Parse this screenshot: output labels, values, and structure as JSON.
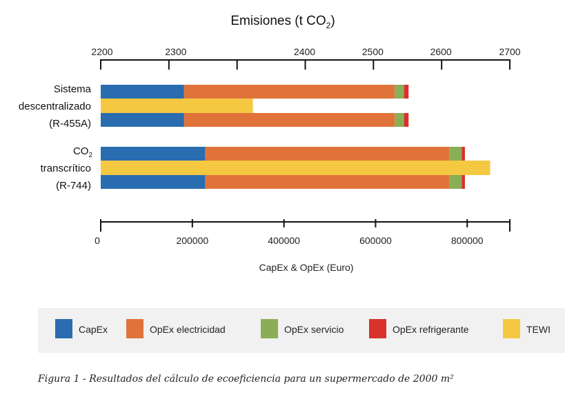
{
  "chart_data": {
    "type": "bar",
    "orientation": "horizontal",
    "stacked": true,
    "title": "Emisiones (t CO2)",
    "categories": [
      {
        "lines": [
          "Sistema",
          "descentralizado",
          "(R-455A)"
        ]
      },
      {
        "lines": [
          "CO2",
          "transcrítico",
          "(R-744)"
        ]
      }
    ],
    "top_axis": {
      "label": "Emisiones (t CO",
      "label_sub": "2",
      "label_end": ")",
      "tick_labels": [
        "2200",
        "2300",
        "",
        "2400",
        "2500",
        "2600",
        "2700"
      ],
      "range": [
        2200,
        2700
      ]
    },
    "bottom_axis": {
      "label": "CapEx & OpEx (Euro)",
      "ticks": [
        0,
        200000,
        400000,
        600000,
        800000
      ],
      "tick_labels": [
        "0",
        "200000",
        "400000",
        "600000",
        "800000"
      ],
      "range": [
        0,
        893000
      ]
    },
    "series": [
      {
        "name": "CapEx",
        "color": "#2a6cb0",
        "axis": "bottom",
        "values": [
          182000,
          228000
        ]
      },
      {
        "name": "OpEx electricidad",
        "color": "#e0733a",
        "axis": "bottom",
        "values": [
          460000,
          533000
        ]
      },
      {
        "name": "OpEx servicio",
        "color": "#8aae55",
        "axis": "bottom",
        "values": [
          20000,
          27000
        ]
      },
      {
        "name": "OpEx refrigerante",
        "color": "#d9312b",
        "axis": "bottom",
        "values": [
          10000,
          7000
        ]
      },
      {
        "name": "TEWI",
        "color": "#f5c842",
        "axis": "top",
        "values": [
          2386,
          2676
        ]
      }
    ],
    "legend": {
      "position": "bottom"
    },
    "grid": false
  },
  "caption": "Figura 1 - Resultados del cálculo de ecoeficiencia para un supermercado de 2000 m²"
}
